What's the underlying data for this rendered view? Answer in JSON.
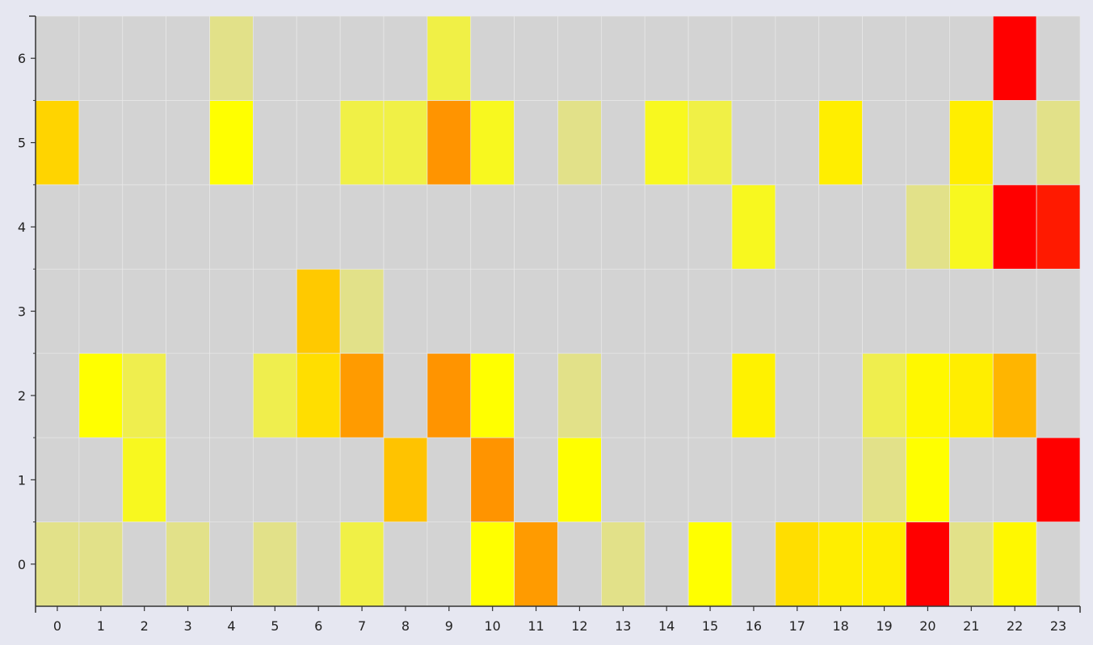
{
  "chart_data": {
    "type": "heatmap",
    "title": "",
    "xlabel": "",
    "ylabel": "",
    "x_categories": [
      "0",
      "1",
      "2",
      "3",
      "4",
      "5",
      "6",
      "7",
      "8",
      "9",
      "10",
      "11",
      "12",
      "13",
      "14",
      "15",
      "16",
      "17",
      "18",
      "19",
      "20",
      "21",
      "22",
      "23"
    ],
    "y_categories": [
      "0",
      "1",
      "2",
      "3",
      "4",
      "5",
      "6"
    ],
    "grid": true,
    "empty_color": "#d3d3d3",
    "colors": {
      "background": "#e6e7f1",
      "axis": "#333333",
      "grid": "#e8e8e8",
      "scale_low": "#dedd9c",
      "scale_yellow": "#ffff00",
      "scale_orange": "#ff9400",
      "scale_high": "#ff0000"
    },
    "value_range": [
      0,
      1
    ],
    "values": [
      [
        0.05,
        0.05,
        null,
        0.05,
        null,
        0.05,
        null,
        0.22,
        null,
        null,
        0.4,
        0.7,
        null,
        0.05,
        null,
        0.4,
        null,
        0.5,
        0.45,
        0.45,
        1.0,
        0.05,
        0.42,
        null
      ],
      [
        null,
        null,
        0.32,
        null,
        null,
        null,
        null,
        null,
        0.58,
        null,
        0.72,
        null,
        0.4,
        null,
        null,
        null,
        null,
        null,
        null,
        0.05,
        0.4,
        null,
        null,
        1.0
      ],
      [
        null,
        0.4,
        0.2,
        null,
        null,
        0.2,
        0.5,
        0.7,
        null,
        0.72,
        0.4,
        null,
        0.05,
        null,
        null,
        null,
        0.44,
        null,
        null,
        0.2,
        0.42,
        0.45,
        0.62,
        null
      ],
      [
        null,
        null,
        null,
        null,
        null,
        null,
        0.56,
        0.05,
        null,
        null,
        null,
        null,
        null,
        null,
        null,
        null,
        null,
        null,
        null,
        null,
        null,
        null,
        null,
        null
      ],
      [
        null,
        null,
        null,
        null,
        null,
        null,
        null,
        null,
        null,
        null,
        null,
        null,
        null,
        null,
        null,
        null,
        0.32,
        null,
        null,
        null,
        0.05,
        0.32,
        1.0,
        0.95
      ],
      [
        0.53,
        null,
        null,
        null,
        0.4,
        null,
        null,
        0.22,
        0.22,
        0.72,
        0.32,
        null,
        0.05,
        null,
        0.32,
        0.22,
        null,
        null,
        0.45,
        null,
        null,
        0.45,
        null,
        0.05
      ],
      [
        null,
        null,
        null,
        null,
        0.05,
        null,
        null,
        null,
        null,
        0.22,
        null,
        null,
        null,
        null,
        null,
        null,
        null,
        null,
        null,
        null,
        null,
        null,
        1.0,
        null
      ]
    ]
  }
}
